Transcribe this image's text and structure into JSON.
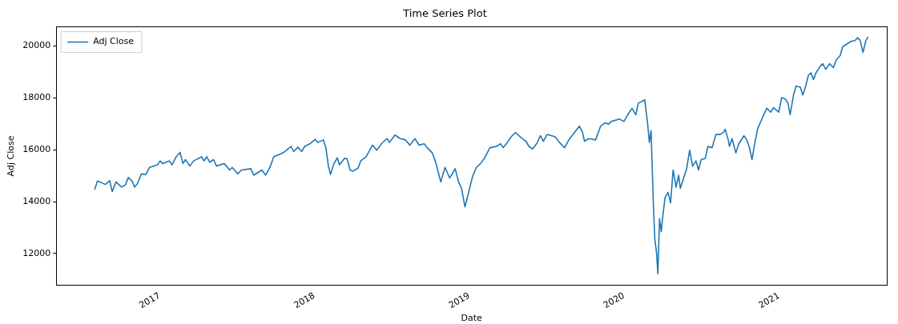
{
  "chart_data": {
    "type": "line",
    "title": "Time Series Plot",
    "xlabel": "Date",
    "ylabel": "Adj Close",
    "x": [
      "2016-08-01",
      "2016-08-07",
      "2016-08-17",
      "2016-08-26",
      "2016-09-05",
      "2016-09-11",
      "2016-09-20",
      "2016-10-03",
      "2016-10-12",
      "2016-10-19",
      "2016-10-28",
      "2016-11-03",
      "2016-11-10",
      "2016-11-19",
      "2016-11-29",
      "2016-12-08",
      "2016-12-27",
      "2017-01-02",
      "2017-01-08",
      "2017-01-24",
      "2017-01-30",
      "2017-02-09",
      "2017-02-18",
      "2017-02-25",
      "2017-03-03",
      "2017-03-13",
      "2017-03-22",
      "2017-04-10",
      "2017-04-16",
      "2017-04-22",
      "2017-04-29",
      "2017-05-08",
      "2017-05-15",
      "2017-06-02",
      "2017-06-15",
      "2017-06-21",
      "2017-07-04",
      "2017-07-13",
      "2017-08-04",
      "2017-08-11",
      "2017-08-30",
      "2017-09-08",
      "2017-09-18",
      "2017-09-27",
      "2017-10-19",
      "2017-10-29",
      "2017-11-07",
      "2017-11-13",
      "2017-11-23",
      "2017-12-02",
      "2017-12-09",
      "2017-12-21",
      "2018-01-03",
      "2018-01-09",
      "2018-01-22",
      "2018-01-28",
      "2018-02-03",
      "2018-02-08",
      "2018-02-16",
      "2018-02-24",
      "2018-03-01",
      "2018-03-13",
      "2018-03-19",
      "2018-03-26",
      "2018-04-01",
      "2018-04-14",
      "2018-04-20",
      "2018-05-03",
      "2018-05-18",
      "2018-05-28",
      "2018-06-08",
      "2018-06-21",
      "2018-06-27",
      "2018-07-10",
      "2018-07-22",
      "2018-08-04",
      "2018-08-14",
      "2018-08-26",
      "2018-09-05",
      "2018-09-17",
      "2018-09-24",
      "2018-10-06",
      "2018-10-14",
      "2018-10-26",
      "2018-11-05",
      "2018-11-16",
      "2018-11-29",
      "2018-12-07",
      "2018-12-14",
      "2018-12-22",
      "2018-12-30",
      "2019-01-09",
      "2019-01-18",
      "2019-01-28",
      "2019-02-06",
      "2019-02-19",
      "2019-03-06",
      "2019-03-16",
      "2019-03-22",
      "2019-04-01",
      "2019-04-10",
      "2019-04-20",
      "2019-05-02",
      "2019-05-15",
      "2019-05-22",
      "2019-05-30",
      "2019-06-09",
      "2019-06-18",
      "2019-06-25",
      "2019-07-04",
      "2019-07-23",
      "2019-08-02",
      "2019-08-14",
      "2019-08-24",
      "2019-09-05",
      "2019-09-18",
      "2019-09-25",
      "2019-09-30",
      "2019-10-10",
      "2019-10-26",
      "2019-11-07",
      "2019-11-17",
      "2019-11-26",
      "2019-12-02",
      "2019-12-21",
      "2020-01-01",
      "2020-01-10",
      "2020-01-20",
      "2020-01-29",
      "2020-02-04",
      "2020-02-11",
      "2020-02-19",
      "2020-02-26",
      "2020-03-01",
      "2020-03-05",
      "2020-03-09",
      "2020-03-11",
      "2020-03-14",
      "2020-03-18",
      "2020-03-21",
      "2020-03-25",
      "2020-03-29",
      "2020-04-01",
      "2020-04-07",
      "2020-04-14",
      "2020-04-20",
      "2020-04-26",
      "2020-05-03",
      "2020-05-09",
      "2020-05-13",
      "2020-05-22",
      "2020-05-28",
      "2020-06-04",
      "2020-06-11",
      "2020-06-19",
      "2020-06-25",
      "2020-07-01",
      "2020-07-11",
      "2020-07-17",
      "2020-07-27",
      "2020-08-05",
      "2020-08-15",
      "2020-08-24",
      "2020-08-27",
      "2020-09-03",
      "2020-09-06",
      "2020-09-12",
      "2020-09-21",
      "2020-09-28",
      "2020-10-10",
      "2020-10-17",
      "2020-10-23",
      "2020-10-29",
      "2020-11-05",
      "2020-11-11",
      "2020-11-20",
      "2020-11-27",
      "2020-12-03",
      "2020-12-12",
      "2020-12-19",
      "2020-12-31",
      "2021-01-07",
      "2021-01-16",
      "2021-01-22",
      "2021-01-27",
      "2021-02-04",
      "2021-02-10",
      "2021-02-20",
      "2021-02-26",
      "2021-03-04",
      "2021-03-11",
      "2021-03-17",
      "2021-03-23",
      "2021-03-29",
      "2021-04-08",
      "2021-04-14",
      "2021-04-21",
      "2021-04-30",
      "2021-05-09",
      "2021-05-16",
      "2021-05-25",
      "2021-05-31",
      "2021-06-10",
      "2021-06-19",
      "2021-06-29",
      "2021-07-05",
      "2021-07-11",
      "2021-07-18",
      "2021-07-24",
      "2021-07-29"
    ],
    "series": [
      {
        "name": "Adj Close",
        "color": "#1f77b4",
        "values": [
          14480,
          14790,
          14730,
          14660,
          14810,
          14390,
          14760,
          14560,
          14640,
          14930,
          14790,
          14560,
          14710,
          15070,
          15040,
          15320,
          15420,
          15570,
          15470,
          15570,
          15420,
          15730,
          15900,
          15470,
          15620,
          15370,
          15570,
          15730,
          15570,
          15730,
          15520,
          15620,
          15370,
          15470,
          15220,
          15320,
          15070,
          15220,
          15270,
          15020,
          15220,
          15020,
          15320,
          15730,
          15880,
          16010,
          16130,
          15930,
          16100,
          15930,
          16130,
          16230,
          16400,
          16280,
          16380,
          16080,
          15370,
          15050,
          15470,
          15690,
          15420,
          15670,
          15650,
          15220,
          15170,
          15290,
          15570,
          15730,
          16180,
          15980,
          16230,
          16430,
          16280,
          16570,
          16430,
          16380,
          16180,
          16430,
          16180,
          16230,
          16080,
          15880,
          15520,
          14760,
          15320,
          14910,
          15270,
          14760,
          14510,
          13800,
          14310,
          14970,
          15320,
          15470,
          15670,
          16080,
          16130,
          16230,
          16080,
          16280,
          16500,
          16670,
          16490,
          16330,
          16130,
          16030,
          16230,
          16540,
          16330,
          16590,
          16500,
          16280,
          16080,
          16380,
          16640,
          16910,
          16690,
          16330,
          16430,
          16380,
          16910,
          17040,
          16990,
          17090,
          17190,
          17090,
          17350,
          17600,
          17350,
          17800,
          17850,
          17930,
          16990,
          16280,
          16740,
          14660,
          13650,
          12530,
          12030,
          11220,
          13340,
          12840,
          13340,
          14150,
          14360,
          13950,
          15220,
          14560,
          15020,
          14510,
          14970,
          15270,
          15980,
          15370,
          15570,
          15220,
          15620,
          15670,
          16130,
          16080,
          16590,
          16590,
          16690,
          16790,
          16380,
          16130,
          16430,
          15880,
          16230,
          16540,
          16380,
          16080,
          15620,
          16280,
          16790,
          17140,
          17400,
          17600,
          17450,
          17620,
          17450,
          18010,
          17950,
          17800,
          17350,
          18110,
          18460,
          18410,
          18110,
          18410,
          18870,
          18970,
          18710,
          18970,
          19220,
          19320,
          19100,
          19320,
          19170,
          19470,
          19630,
          19980,
          20080,
          20180,
          20210,
          20320,
          20230,
          19750,
          20180,
          20340
        ]
      }
    ],
    "xlim": [
      "2016-05-02",
      "2021-09-12"
    ],
    "xticks": [
      {
        "value": "2017-01-01",
        "label": "2017"
      },
      {
        "value": "2018-01-01",
        "label": "2018"
      },
      {
        "value": "2019-01-01",
        "label": "2019"
      },
      {
        "value": "2020-01-01",
        "label": "2020"
      },
      {
        "value": "2021-01-01",
        "label": "2021"
      }
    ],
    "ylim": [
      10780,
      20740
    ],
    "yticks": [
      12000,
      14000,
      16000,
      18000,
      20000
    ],
    "legend": "top left",
    "grid": false,
    "marker": "none",
    "line_style": "solid"
  }
}
